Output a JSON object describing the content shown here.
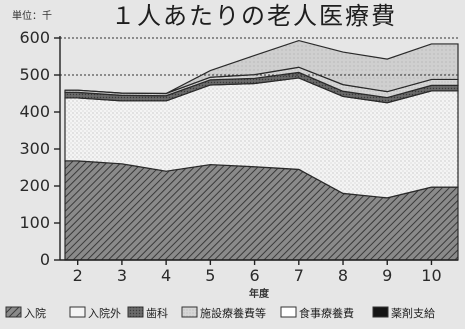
{
  "chart_data": {
    "type": "area",
    "title": "１人あたりの老人医療費",
    "unit_label": "単位：千",
    "xlabel": "年度",
    "ylabel": "",
    "x": [
      "2",
      "3",
      "4",
      "5",
      "6",
      "7",
      "8",
      "9",
      "10"
    ],
    "ylim": [
      0,
      600
    ],
    "yticks": [
      0,
      100,
      200,
      300,
      400,
      500,
      600
    ],
    "reference_line": 500,
    "stacked": true,
    "series": [
      {
        "name": "入院",
        "values": [
          268,
          260,
          240,
          258,
          252,
          245,
          180,
          168,
          197
        ],
        "color": "#6e6e6e"
      },
      {
        "name": "入院外",
        "values": [
          170,
          170,
          190,
          215,
          225,
          247,
          262,
          257,
          260
        ],
        "color": "#f2f2f2"
      },
      {
        "name": "歯科",
        "values": [
          15,
          15,
          14,
          14,
          14,
          15,
          14,
          14,
          15
        ],
        "color": "#8c8c8c"
      },
      {
        "name": "施設療養費等",
        "values": [
          6,
          6,
          6,
          7,
          10,
          14,
          18,
          16,
          16
        ],
        "color": "#d2d2d2"
      },
      {
        "name": "食事療養費",
        "values": [
          0,
          0,
          0,
          18,
          52,
          72,
          88,
          88,
          96
        ],
        "color": "#e8e8e8"
      },
      {
        "name": "薬剤支給",
        "values": [
          0,
          0,
          0,
          0,
          0,
          0,
          0,
          0,
          0
        ],
        "color": "#151515"
      }
    ],
    "grid": false,
    "legend_position": "bottom"
  }
}
